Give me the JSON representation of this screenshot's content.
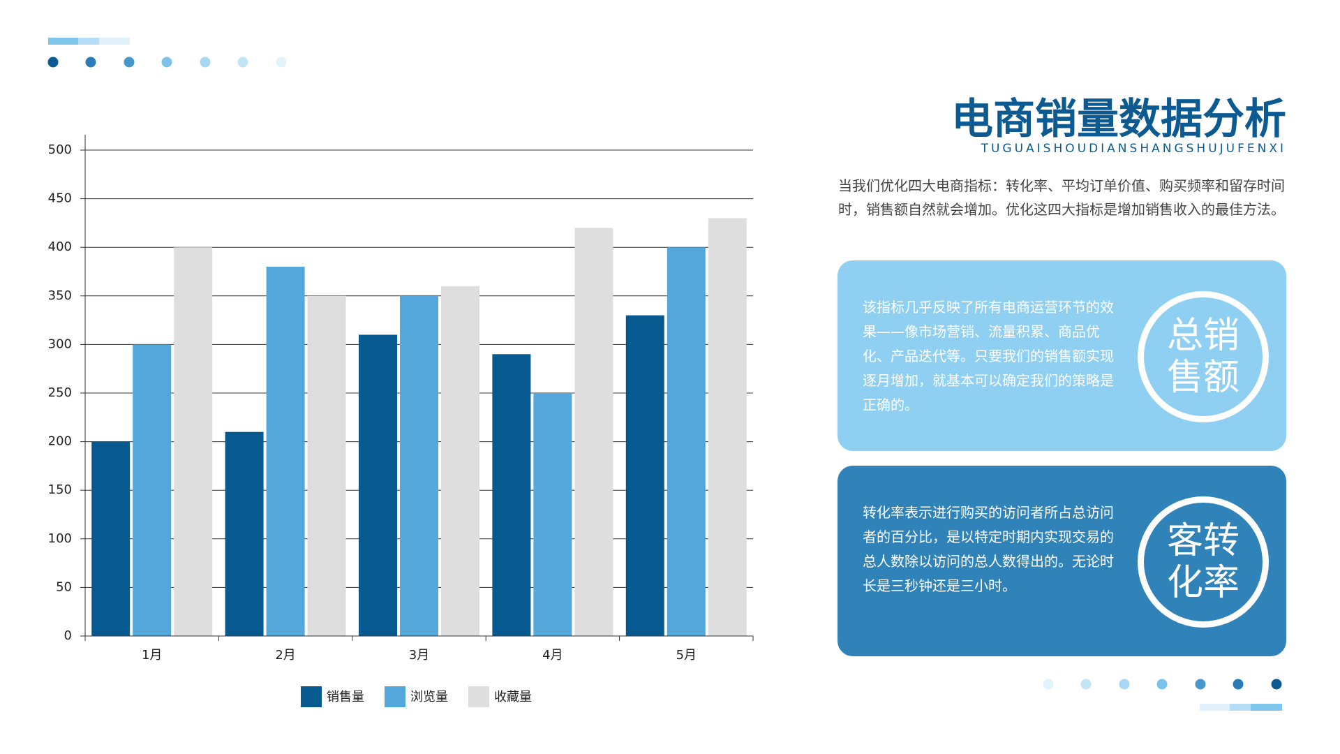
{
  "chart_data": {
    "type": "bar",
    "categories": [
      "1月",
      "2月",
      "3月",
      "4月",
      "5月"
    ],
    "series": [
      {
        "name": "销售量",
        "color": "#065a8f",
        "values": [
          200,
          210,
          310,
          290,
          330
        ]
      },
      {
        "name": "浏览量",
        "color": "#54a7db",
        "values": [
          300,
          380,
          350,
          250,
          400
        ]
      },
      {
        "name": "收藏量",
        "color": "#dedede",
        "values": [
          400,
          350,
          360,
          420,
          430
        ]
      }
    ],
    "ylim": [
      0,
      500
    ],
    "yticks": [
      0,
      50,
      100,
      150,
      200,
      250,
      300,
      350,
      400,
      450,
      500
    ],
    "grid": true,
    "legend": "bottom"
  },
  "header": {
    "title": "电商销量数据分析",
    "subtitle": "TUGUAISHOUDIANSHANGSHUJUFENXI"
  },
  "intro": "当我们优化四大电商指标：转化率、平均订单价值、购买频率和留存时间时，销售额自然就会增加。优化这四大指标是增加销售收入的最佳方法。",
  "cards": [
    {
      "text": "该指标几乎反映了所有电商运营环节的效果——像市场营销、流量积累、商品优化、产品迭代等。只要我们的销售额实现逐月增加，就基本可以确定我们的策略是正确的。",
      "badge_line1": "总销",
      "badge_line2": "售额"
    },
    {
      "text": "转化率表示进行购买的访问者所占总访问者的百分比，是以特定时期内实现交易的总人数除以访问的总人数得出的。无论时长是三秒钟还是三小时。",
      "badge_line1": "客转",
      "badge_line2": "化率"
    }
  ]
}
